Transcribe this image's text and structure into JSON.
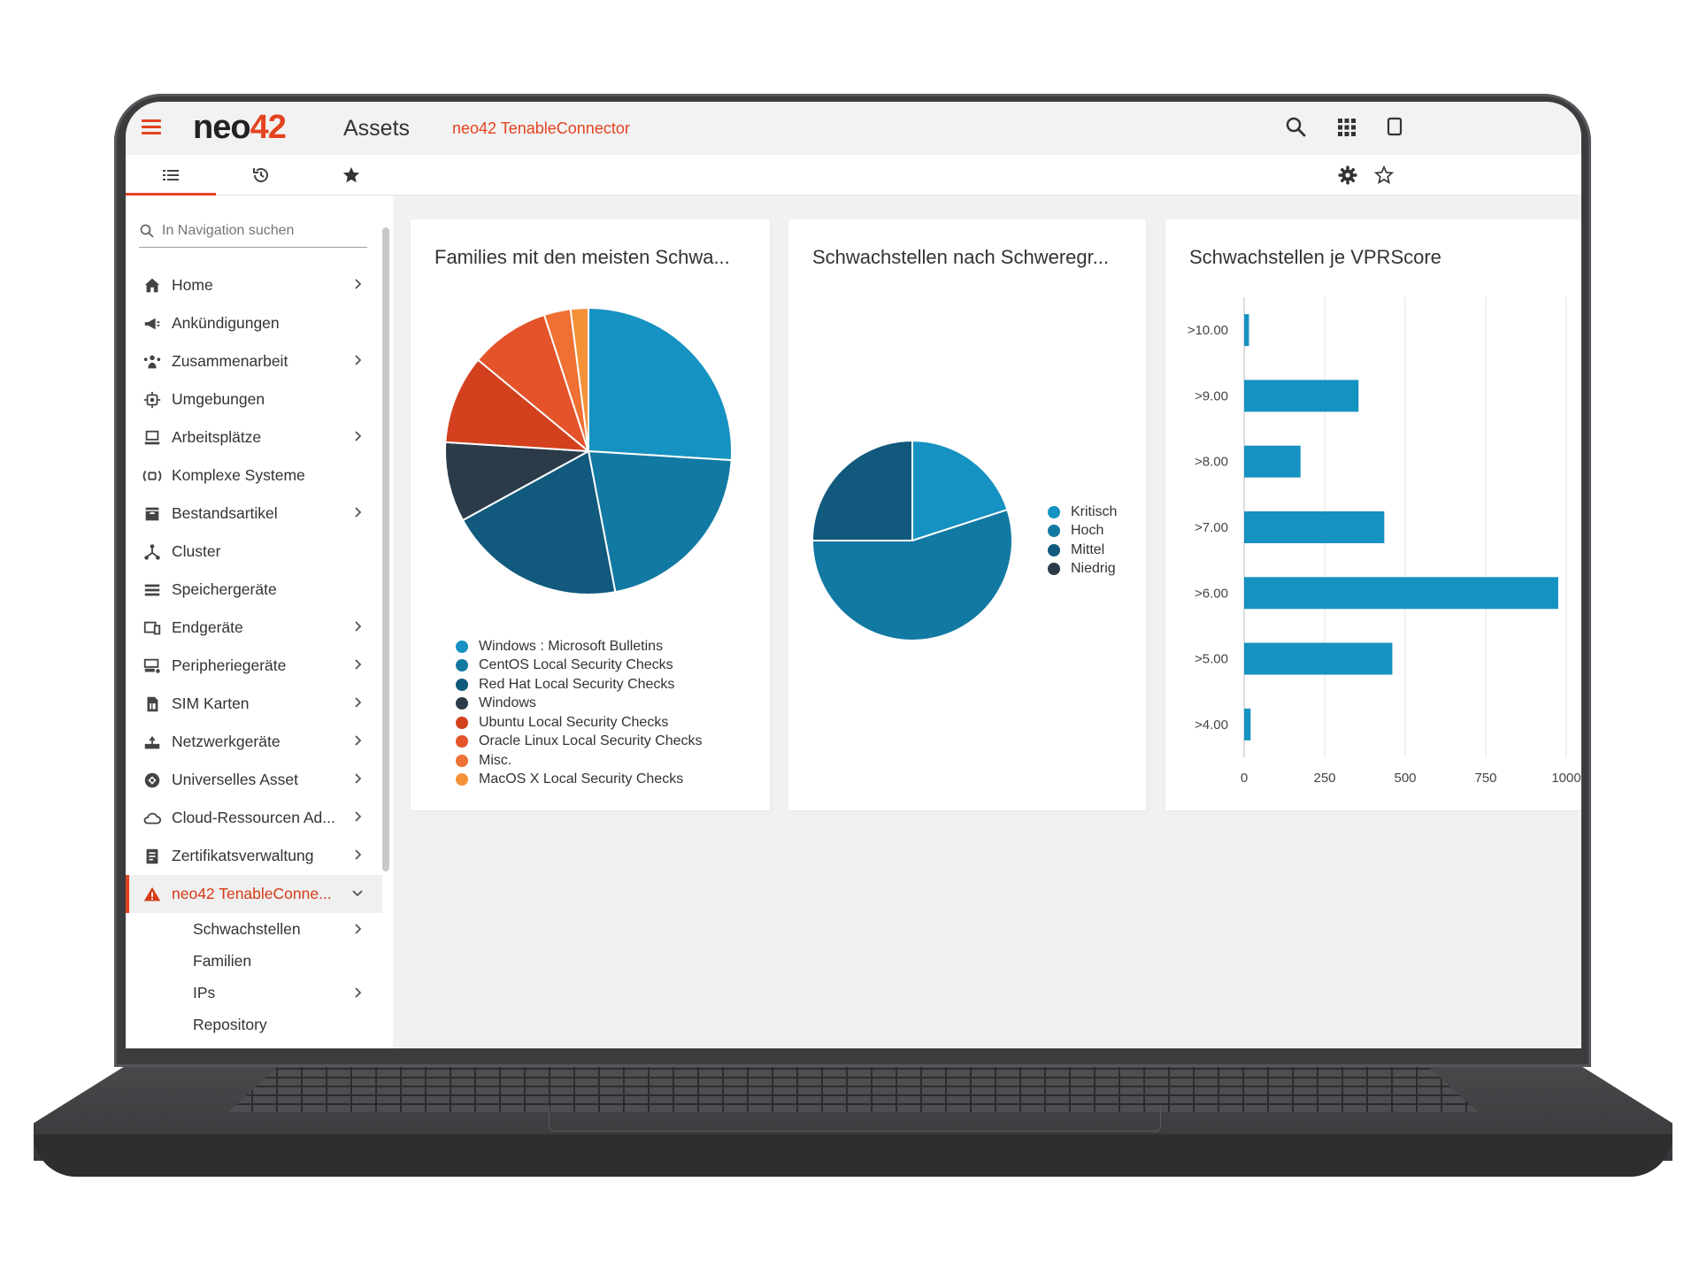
{
  "app": {
    "logo_main": "neo",
    "logo_accent": "42",
    "module_title": "Assets",
    "breadcrumb": "neo42 TenableConnector"
  },
  "colors": {
    "brand": "#e4431f",
    "bar": "#1592c1"
  },
  "nav_tabs": [
    {
      "icon": "list-icon",
      "active": true
    },
    {
      "icon": "history-icon",
      "active": false
    },
    {
      "icon": "star-icon",
      "active": false
    }
  ],
  "sidebar": {
    "search_placeholder": "In Navigation suchen",
    "items": [
      {
        "label": "Home",
        "icon": "home-icon",
        "chevron": true
      },
      {
        "label": "Ankündigungen",
        "icon": "megaphone-icon",
        "chevron": false
      },
      {
        "label": "Zusammenarbeit",
        "icon": "team-icon",
        "chevron": true
      },
      {
        "label": "Umgebungen",
        "icon": "environment-icon",
        "chevron": false
      },
      {
        "label": "Arbeitsplätze",
        "icon": "workstation-icon",
        "chevron": true
      },
      {
        "label": "Komplexe Systeme",
        "icon": "complex-system-icon",
        "chevron": false
      },
      {
        "label": "Bestandsartikel",
        "icon": "inventory-icon",
        "chevron": true
      },
      {
        "label": "Cluster",
        "icon": "cluster-icon",
        "chevron": false
      },
      {
        "label": "Speichergeräte",
        "icon": "storage-icon",
        "chevron": false
      },
      {
        "label": "Endgeräte",
        "icon": "devices-icon",
        "chevron": true
      },
      {
        "label": "Peripheriegeräte",
        "icon": "peripheral-icon",
        "chevron": true
      },
      {
        "label": "SIM Karten",
        "icon": "sim-card-icon",
        "chevron": true
      },
      {
        "label": "Netzwerkgeräte",
        "icon": "router-icon",
        "chevron": true
      },
      {
        "label": "Universelles Asset",
        "icon": "universal-asset-icon",
        "chevron": true
      },
      {
        "label": "Cloud-Ressourcen Ad...",
        "icon": "cloud-icon",
        "chevron": true
      },
      {
        "label": "Zertifikatsverwaltung",
        "icon": "certificate-icon",
        "chevron": true
      },
      {
        "label": "neo42 TenableConne...",
        "icon": "warning-icon",
        "chevron": true,
        "active": true
      }
    ],
    "sub_items": [
      {
        "label": "Schwachstellen",
        "chevron": true
      },
      {
        "label": "Familien",
        "chevron": false
      },
      {
        "label": "IPs",
        "chevron": true
      },
      {
        "label": "Repository",
        "chevron": false
      }
    ]
  },
  "cards": {
    "families_title": "Families mit den meisten Schwa...",
    "severity_title": "Schwachstellen nach Schweregr...",
    "vpr_title": "Schwachstellen je VPRScore"
  },
  "chart_data": [
    {
      "type": "pie",
      "title": "Families mit den meisten Schwa...",
      "legend_position": "bottom",
      "slices": [
        {
          "label": "Windows : Microsoft Bulletins",
          "value": 26,
          "color": "#1592c1"
        },
        {
          "label": "CentOS Local Security Checks",
          "value": 21,
          "color": "#1279a3"
        },
        {
          "label": "Red Hat Local Security Checks",
          "value": 20,
          "color": "#115a7d"
        },
        {
          "label": "Windows",
          "value": 9,
          "color": "#2c3b49"
        },
        {
          "label": "Ubuntu Local Security Checks",
          "value": 10,
          "color": "#d3401e"
        },
        {
          "label": "Oracle Linux Local Security Checks",
          "value": 9,
          "color": "#e4532a"
        },
        {
          "label": "Misc.",
          "value": 3,
          "color": "#ee7033"
        },
        {
          "label": "MacOS X Local Security Checks",
          "value": 2,
          "color": "#f49138"
        }
      ]
    },
    {
      "type": "pie",
      "title": "Schwachstellen nach Schweregr...",
      "legend_position": "right",
      "slices": [
        {
          "label": "Kritisch",
          "value": 20,
          "color": "#1592c1"
        },
        {
          "label": "Hoch",
          "value": 55,
          "color": "#1279a3"
        },
        {
          "label": "Mittel",
          "value": 25,
          "color": "#115a7d"
        },
        {
          "label": "Niedrig",
          "value": 0,
          "color": "#2c3b49"
        }
      ]
    },
    {
      "type": "bar",
      "orientation": "horizontal",
      "title": "Schwachstellen je VPRScore",
      "categories": [
        ">10.00",
        ">9.00",
        ">8.00",
        ">7.00",
        ">6.00",
        ">5.00",
        ">4.00"
      ],
      "values": [
        15,
        355,
        175,
        435,
        975,
        460,
        20
      ],
      "xlim": [
        0,
        1000
      ],
      "xticks": [
        0,
        250,
        500,
        750,
        1000
      ],
      "grid": true,
      "color": "#1592c1"
    }
  ]
}
